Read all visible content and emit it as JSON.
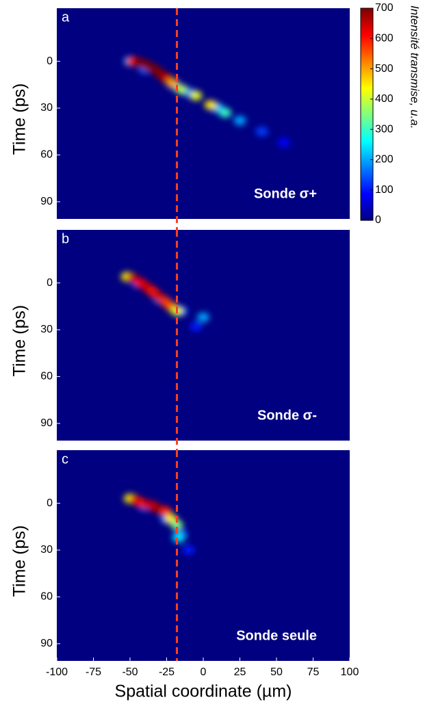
{
  "chart_data": [
    {
      "type": "heatmap",
      "panel_label": "a",
      "annotation": "Sonde σ+",
      "ylabel": "Time (ps)",
      "xlim": [
        -100,
        100
      ],
      "ylim": [
        -34,
        101
      ],
      "yticks": [
        0,
        30,
        60,
        90
      ],
      "vline": -18,
      "x": [
        -50,
        -40,
        -20,
        -10,
        10,
        25,
        40,
        55,
        -15,
        -5,
        5,
        15,
        -48,
        -44,
        -40,
        -36,
        -32,
        -28,
        -25,
        -21
      ],
      "y": [
        0,
        5,
        15,
        20,
        30,
        38,
        45,
        52,
        18,
        22,
        28,
        33,
        0,
        1,
        2,
        4,
        6,
        9,
        11,
        14
      ],
      "values": [
        200,
        150,
        200,
        180,
        220,
        200,
        130,
        90,
        380,
        420,
        450,
        300,
        600,
        700,
        700,
        700,
        700,
        700,
        650,
        500
      ],
      "colorbar": {
        "lim": [
          0,
          700
        ],
        "ticks": [
          0,
          100,
          200,
          300,
          400,
          500,
          600,
          700
        ],
        "label": "Intensité transmise, u.a."
      }
    },
    {
      "type": "heatmap",
      "panel_label": "b",
      "annotation": "Sonde σ-",
      "ylabel": "Time (ps)",
      "xlim": [
        -100,
        100
      ],
      "ylim": [
        -34,
        101
      ],
      "yticks": [
        0,
        30,
        60,
        90
      ],
      "vline": -18,
      "x": [
        -45,
        -30,
        -15,
        0,
        -5,
        -52,
        -48,
        -43,
        -38,
        -34,
        -30,
        -26,
        -22,
        -18
      ],
      "y": [
        0,
        10,
        18,
        22,
        28,
        -4,
        -3,
        0,
        3,
        6,
        9,
        12,
        15,
        18
      ],
      "values": [
        150,
        180,
        160,
        200,
        100,
        450,
        650,
        620,
        640,
        600,
        650,
        580,
        550,
        420
      ]
    },
    {
      "type": "heatmap",
      "panel_label": "c",
      "annotation": "Sonde seule",
      "ylabel": "Time (ps)",
      "xlabel": "Spatial coordinate (µm)",
      "xlim": [
        -100,
        100
      ],
      "ylim": [
        -34,
        101
      ],
      "yticks": [
        0,
        30,
        60,
        90
      ],
      "vline": -18,
      "xticks": [
        -100,
        -75,
        -50,
        -25,
        0,
        25,
        50,
        75,
        100
      ],
      "x": [
        -40,
        -25,
        -15,
        -10,
        -50,
        -46,
        -42,
        -38,
        -34,
        -30,
        -26,
        -22,
        -18,
        -17
      ],
      "y": [
        2,
        10,
        20,
        30,
        -3,
        -2,
        0,
        1,
        2,
        4,
        5,
        10,
        14,
        22
      ],
      "values": [
        150,
        180,
        150,
        100,
        450,
        640,
        600,
        650,
        640,
        700,
        600,
        450,
        350,
        250
      ]
    }
  ]
}
